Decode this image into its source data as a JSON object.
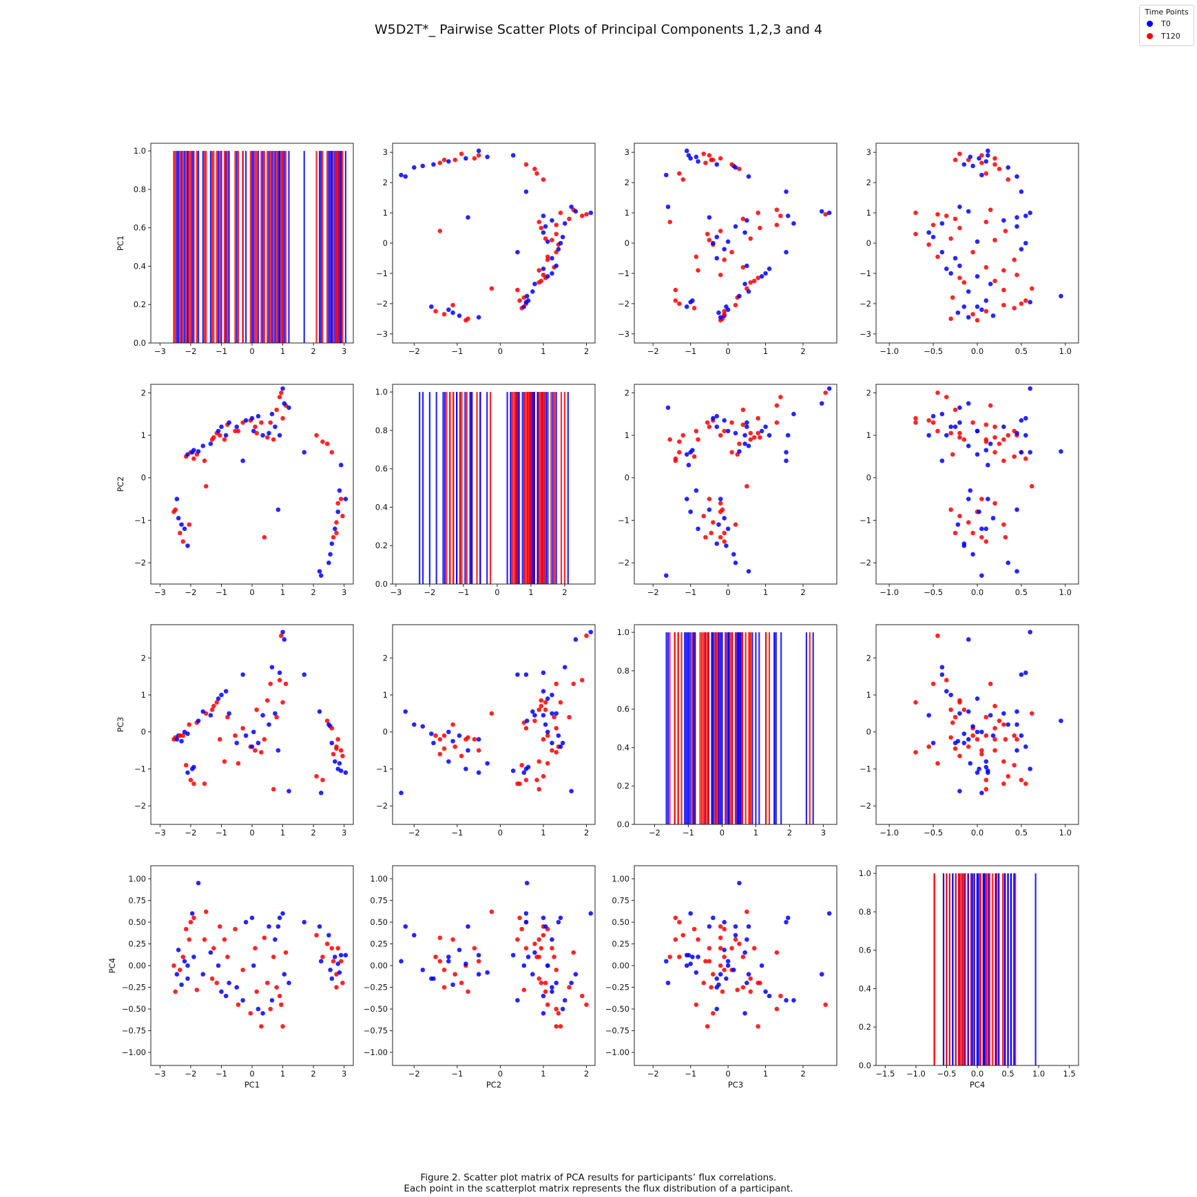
{
  "title": "W5D2T*_ Pairwise Scatter Plots of Principal Components 1,2,3 and 4",
  "legend": {
    "title": "Time Points",
    "items": [
      {
        "label": "T0",
        "color": "#0000ff"
      },
      {
        "label": "T120",
        "color": "#ff0000"
      }
    ]
  },
  "caption": {
    "line1": "Figure 2. Scatter plot matrix of PCA results for participants’ flux correlations.",
    "line2": "Each point in the scatterplot matrix represents the flux distribution of a participant."
  },
  "chart_data": {
    "type": "scatter",
    "variables": [
      "PC1",
      "PC2",
      "PC3",
      "PC4"
    ],
    "series_names": [
      "T0",
      "T120"
    ],
    "colors": {
      "T0": "#0000ff",
      "T120": "#ff0000"
    },
    "axis_limits": [
      [
        -3.3,
        3.3
      ],
      [
        -2.5,
        2.2
      ],
      [
        -2.5,
        2.9
      ],
      [
        -1.15,
        1.15
      ]
    ],
    "hist_xlim": [
      [
        -3.3,
        3.3
      ],
      [
        -3.1,
        2.9
      ],
      [
        -2.6,
        3.4
      ],
      [
        -1.65,
        1.65
      ]
    ],
    "ticks": [
      [
        -3,
        -2,
        -1,
        0,
        1,
        2,
        3
      ],
      [
        -2,
        -1,
        0,
        1,
        2
      ],
      [
        -2,
        -1,
        0,
        1,
        2
      ],
      [
        -1.0,
        -0.5,
        0.0,
        0.5,
        1.0
      ]
    ],
    "tick_labels": [
      [
        "−3",
        "−2",
        "−1",
        "0",
        "1",
        "2",
        "3"
      ],
      [
        "−2",
        "−1",
        "0",
        "1",
        "2"
      ],
      [
        "−2",
        "−1",
        "0",
        "1",
        "2"
      ],
      [
        "−1.0",
        "−0.5",
        "0.0",
        "0.5",
        "1.0"
      ]
    ],
    "pc4_y_ticks": [
      -1.0,
      -0.75,
      -0.5,
      -0.25,
      0.0,
      0.25,
      0.5,
      0.75,
      1.0
    ],
    "pc4_y_tick_labels": [
      "−1.00",
      "−0.75",
      "−0.50",
      "−0.25",
      "0.00",
      "0.25",
      "0.50",
      "0.75",
      "1.00"
    ],
    "hist_y_ticks": [
      0.0,
      0.2,
      0.4,
      0.6,
      0.8,
      1.0
    ],
    "hist_y_tick_labels": [
      "0.0",
      "0.2",
      "0.4",
      "0.6",
      "0.8",
      "1.0"
    ],
    "hist_x_ticks": [
      [
        -3,
        -2,
        -1,
        0,
        1,
        2,
        3
      ],
      [
        -3,
        -2,
        -1,
        0,
        1,
        2
      ],
      [
        -2,
        -1,
        0,
        1,
        2,
        3
      ],
      [
        -1.5,
        -1.0,
        -0.5,
        0.0,
        0.5,
        1.0,
        1.5
      ]
    ],
    "hist_x_tick_labels": [
      [
        "−3",
        "−2",
        "−1",
        "0",
        "1",
        "2",
        "3"
      ],
      [
        "−3",
        "−2",
        "−1",
        "0",
        "1",
        "2"
      ],
      [
        "−2",
        "−1",
        "0",
        "1",
        "2",
        "3"
      ],
      [
        "−1.5",
        "−1.0",
        "−0.5",
        "0.0",
        "0.5",
        "1.0",
        "1.5"
      ]
    ],
    "points": [
      {
        "t": "T120",
        "v": [
          -2.55,
          -0.8,
          -0.2,
          0.0
        ]
      },
      {
        "t": "T120",
        "v": [
          -2.5,
          -0.75,
          -0.15,
          -0.3
        ]
      },
      {
        "t": "T0",
        "v": [
          -2.45,
          -0.5,
          -0.2,
          -0.1
        ]
      },
      {
        "t": "T0",
        "v": [
          -2.4,
          -0.95,
          -0.1,
          0.18
        ]
      },
      {
        "t": "T120",
        "v": [
          -2.35,
          -1.3,
          -0.1,
          -0.05
        ]
      },
      {
        "t": "T0",
        "v": [
          -2.3,
          -1.1,
          -0.25,
          -0.22
        ]
      },
      {
        "t": "T120",
        "v": [
          -2.25,
          -1.5,
          -0.1,
          0.1
        ]
      },
      {
        "t": "T0",
        "v": [
          -2.2,
          -1.2,
          0.0,
          0.05
        ]
      },
      {
        "t": "T0",
        "v": [
          -2.1,
          -1.6,
          -0.05,
          -0.15
        ]
      },
      {
        "t": "T120",
        "v": [
          -2.05,
          -1.1,
          0.2,
          0.3
        ]
      },
      {
        "t": "T120",
        "v": [
          -2.15,
          0.5,
          -0.9,
          0.42
        ]
      },
      {
        "t": "T0",
        "v": [
          -2.1,
          0.55,
          -1.1,
          0.0
        ]
      },
      {
        "t": "T120",
        "v": [
          -2.0,
          0.6,
          -1.3,
          0.5
        ]
      },
      {
        "t": "T0",
        "v": [
          -1.95,
          0.6,
          -1.0,
          0.6
        ]
      },
      {
        "t": "T0",
        "v": [
          -1.9,
          0.65,
          -0.95,
          0.1
        ]
      },
      {
        "t": "T120",
        "v": [
          -1.9,
          0.45,
          -1.4,
          0.55
        ]
      },
      {
        "t": "T120",
        "v": [
          -1.8,
          0.55,
          0.25,
          -0.28
        ]
      },
      {
        "t": "T0",
        "v": [
          -1.75,
          0.62,
          0.3,
          0.95
        ]
      },
      {
        "t": "T120",
        "v": [
          -1.5,
          -0.2,
          0.5,
          0.62
        ]
      },
      {
        "t": "T120",
        "v": [
          -1.55,
          0.4,
          -1.4,
          0.3
        ]
      },
      {
        "t": "T0",
        "v": [
          -1.6,
          0.75,
          0.55,
          -0.1
        ]
      },
      {
        "t": "T120",
        "v": [
          -1.3,
          0.9,
          0.6,
          -0.15
        ]
      },
      {
        "t": "T120",
        "v": [
          -1.25,
          0.95,
          0.7,
          0.2
        ]
      },
      {
        "t": "T0",
        "v": [
          -1.35,
          0.8,
          0.45,
          0.15
        ]
      },
      {
        "t": "T120",
        "v": [
          -1.15,
          1.05,
          0.8,
          -0.2
        ]
      },
      {
        "t": "T0",
        "v": [
          -1.1,
          1.1,
          0.9,
          0.0
        ]
      },
      {
        "t": "T120",
        "v": [
          -1.05,
          1.0,
          -0.2,
          0.45
        ]
      },
      {
        "t": "T0",
        "v": [
          -1.0,
          1.2,
          1.0,
          -0.3
        ]
      },
      {
        "t": "T120",
        "v": [
          -0.9,
          0.9,
          -0.8,
          0.3
        ]
      },
      {
        "t": "T0",
        "v": [
          -0.85,
          1.0,
          1.1,
          -0.35
        ]
      },
      {
        "t": "T120",
        "v": [
          -0.8,
          1.25,
          0.4,
          0.1
        ]
      },
      {
        "t": "T0",
        "v": [
          -0.75,
          1.3,
          0.5,
          -0.2
        ]
      },
      {
        "t": "T120",
        "v": [
          -0.55,
          1.1,
          -0.1,
          0.42
        ]
      },
      {
        "t": "T0",
        "v": [
          -0.5,
          1.2,
          -0.3,
          -0.25
        ]
      },
      {
        "t": "T120",
        "v": [
          -0.45,
          1.1,
          -0.85,
          -0.45
        ]
      },
      {
        "t": "T0",
        "v": [
          -0.3,
          0.4,
          1.55,
          -0.4
        ]
      },
      {
        "t": "T120",
        "v": [
          -0.3,
          1.3,
          0.1,
          -0.05
        ]
      },
      {
        "t": "T0",
        "v": [
          -0.2,
          1.35,
          -0.1,
          0.5
        ]
      },
      {
        "t": "T120",
        "v": [
          -0.05,
          1.35,
          -0.4,
          -0.55
        ]
      },
      {
        "t": "T0",
        "v": [
          0.0,
          1.4,
          -0.4,
          0.55
        ]
      },
      {
        "t": "T120",
        "v": [
          0.1,
          1.2,
          -0.5,
          0.2
        ]
      },
      {
        "t": "T0",
        "v": [
          0.05,
          1.1,
          0.0,
          0.0
        ]
      },
      {
        "t": "T120",
        "v": [
          0.15,
          1.05,
          0.6,
          -0.3
        ]
      },
      {
        "t": "T0",
        "v": [
          0.2,
          1.45,
          -0.3,
          -0.5
        ]
      },
      {
        "t": "T120",
        "v": [
          0.3,
          1.3,
          -0.55,
          -0.7
        ]
      },
      {
        "t": "T0",
        "v": [
          0.35,
          1.0,
          0.45,
          -0.55
        ]
      },
      {
        "t": "T120",
        "v": [
          0.4,
          -1.4,
          -0.2,
          0.32
        ]
      },
      {
        "t": "T120",
        "v": [
          0.5,
          0.95,
          0.85,
          -0.2
        ]
      },
      {
        "t": "T0",
        "v": [
          0.55,
          1.05,
          0.2,
          0.45
        ]
      },
      {
        "t": "T120",
        "v": [
          0.6,
          1.3,
          1.3,
          -0.5
        ]
      },
      {
        "t": "T0",
        "v": [
          0.65,
          1.5,
          1.75,
          -0.4
        ]
      },
      {
        "t": "T120",
        "v": [
          0.7,
          0.9,
          -1.55,
          0.1
        ]
      },
      {
        "t": "T0",
        "v": [
          0.75,
          1.2,
          0.5,
          0.3
        ]
      },
      {
        "t": "T120",
        "v": [
          0.8,
          1.6,
          0.4,
          -0.25
        ]
      },
      {
        "t": "T0",
        "v": [
          0.85,
          -0.75,
          -0.5,
          0.45
        ]
      },
      {
        "t": "T120",
        "v": [
          0.9,
          1.9,
          1.4,
          -0.35
        ]
      },
      {
        "t": "T0",
        "v": [
          0.9,
          1.0,
          1.6,
          0.55
        ]
      },
      {
        "t": "T120",
        "v": [
          0.95,
          2.0,
          2.6,
          -0.45
        ]
      },
      {
        "t": "T0",
        "v": [
          1.0,
          2.1,
          2.7,
          0.6
        ]
      },
      {
        "t": "T120",
        "v": [
          1.1,
          1.7,
          1.3,
          0.15
        ]
      },
      {
        "t": "T0",
        "v": [
          1.05,
          1.75,
          2.5,
          -0.1
        ]
      },
      {
        "t": "T120",
        "v": [
          1.0,
          1.4,
          0.8,
          -0.7
        ]
      },
      {
        "t": "T0",
        "v": [
          1.2,
          1.65,
          -1.6,
          -0.2
        ]
      },
      {
        "t": "T0",
        "v": [
          1.7,
          0.6,
          1.55,
          0.5
        ]
      },
      {
        "t": "T120",
        "v": [
          2.1,
          1.0,
          -1.2,
          0.35
        ]
      },
      {
        "t": "T0",
        "v": [
          2.2,
          -2.2,
          0.55,
          0.45
        ]
      },
      {
        "t": "T0",
        "v": [
          2.25,
          -2.3,
          -1.65,
          0.05
        ]
      },
      {
        "t": "T120",
        "v": [
          2.3,
          0.85,
          -1.3,
          0.1
        ]
      },
      {
        "t": "T120",
        "v": [
          2.45,
          0.8,
          0.3,
          0.25
        ]
      },
      {
        "t": "T0",
        "v": [
          2.5,
          -2.0,
          0.2,
          0.35
        ]
      },
      {
        "t": "T0",
        "v": [
          2.55,
          -1.8,
          0.15,
          -0.05
        ]
      },
      {
        "t": "T120",
        "v": [
          2.6,
          0.6,
          0.1,
          0.2
        ]
      },
      {
        "t": "T0",
        "v": [
          2.6,
          -1.55,
          -0.3,
          -0.15
        ]
      },
      {
        "t": "T120",
        "v": [
          2.65,
          -1.4,
          -0.6,
          0.05
        ]
      },
      {
        "t": "T0",
        "v": [
          2.7,
          -1.2,
          -0.8,
          0.1
        ]
      },
      {
        "t": "T120",
        "v": [
          2.75,
          -1.05,
          -0.4,
          -0.1
        ]
      },
      {
        "t": "T0",
        "v": [
          2.8,
          -0.8,
          -1.0,
          0.02
        ]
      },
      {
        "t": "T120",
        "v": [
          2.8,
          -0.6,
          -0.2,
          0.2
        ]
      },
      {
        "t": "T0",
        "v": [
          2.85,
          -0.3,
          -0.85,
          -0.08
        ]
      },
      {
        "t": "T120",
        "v": [
          2.9,
          -0.5,
          -0.5,
          0.05
        ]
      },
      {
        "t": "T0",
        "v": [
          2.9,
          0.3,
          -1.05,
          0.12
        ]
      },
      {
        "t": "T120",
        "v": [
          2.95,
          -0.9,
          -0.65,
          -0.2
        ]
      },
      {
        "t": "T0",
        "v": [
          3.05,
          -0.5,
          -1.1,
          0.12
        ]
      },
      {
        "t": "T120",
        "v": [
          2.75,
          -1.3,
          -0.45,
          -0.25
        ]
      }
    ]
  }
}
